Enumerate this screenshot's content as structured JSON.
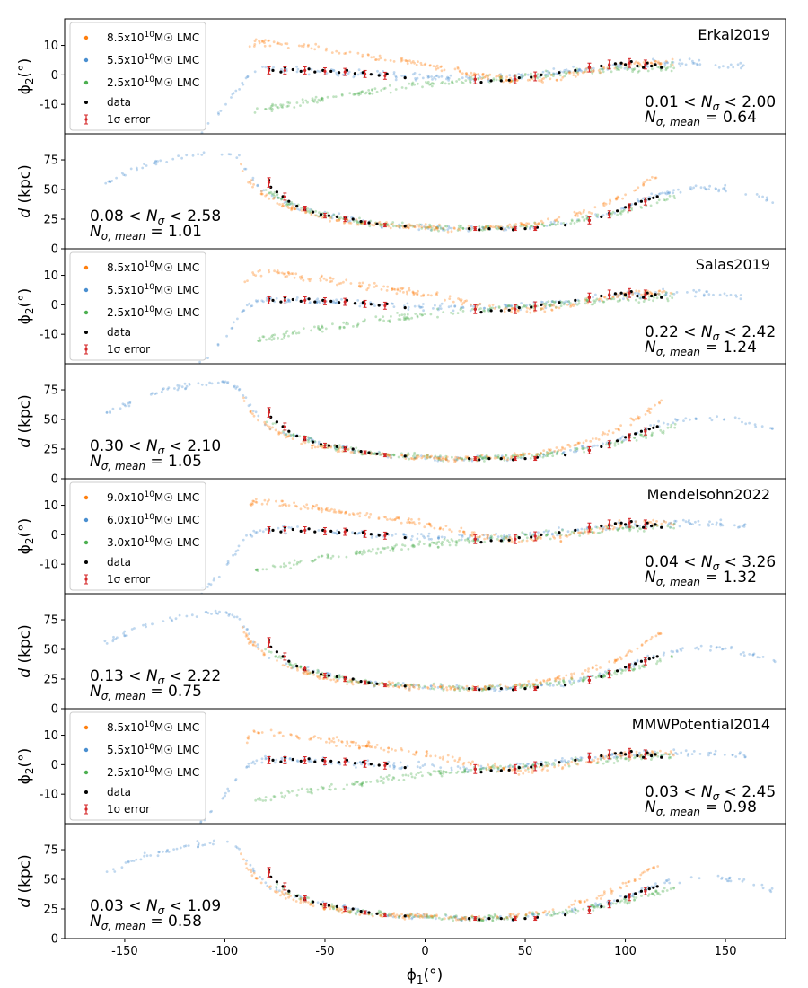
{
  "figure": {
    "xlabel_prefix": "ϕ",
    "xlabel_sub": "1",
    "xlabel_suffix": "(°)",
    "xlim": [
      -180,
      180
    ],
    "xticks": [
      -150,
      -100,
      -50,
      0,
      50,
      100,
      150
    ],
    "legend_labels": {
      "data": "data",
      "error": "1σ error"
    },
    "ylabel_phi": {
      "prefix": "ϕ",
      "sub": "2",
      "suffix": "(°)"
    },
    "ylabel_d": "d (kpc)",
    "colors": {
      "heavy": "#ff7f0e",
      "medium": "#4a8fd0",
      "light": "#4caf50",
      "data": "#000000",
      "error": "#d62728"
    }
  },
  "chart_data": [
    {
      "model": "Erkal2019",
      "legend": [
        "8.5x10^10 M☉ LMC",
        "5.5x10^10 M☉ LMC",
        "2.5x10^10 M☉ LMC"
      ],
      "phi_panel": {
        "type": "scatter",
        "ylim": [
          -20,
          19
        ],
        "yticks": [
          -10,
          0,
          10
        ],
        "stat1_lhs": "0.01",
        "stat1_rhs": "2.00",
        "stat2": "0.64"
      },
      "d_panel": {
        "type": "scatter",
        "ylim": [
          0,
          97
        ],
        "yticks": [
          0,
          25,
          50,
          75
        ],
        "stat1_lhs": "0.08",
        "stat1_rhs": "2.58",
        "stat2": "1.01"
      }
    },
    {
      "model": "Salas2019",
      "legend": [
        "8.5x10^10 M☉ LMC",
        "5.5x10^10 M☉ LMC",
        "2.5x10^10 M☉ LMC"
      ],
      "phi_panel": {
        "type": "scatter",
        "ylim": [
          -20,
          19
        ],
        "yticks": [
          -10,
          0,
          10
        ],
        "stat1_lhs": "0.22",
        "stat1_rhs": "2.42",
        "stat2": "1.24"
      },
      "d_panel": {
        "type": "scatter",
        "ylim": [
          0,
          97
        ],
        "yticks": [
          0,
          25,
          50,
          75
        ],
        "stat1_lhs": "0.30",
        "stat1_rhs": "2.10",
        "stat2": "1.05"
      }
    },
    {
      "model": "Mendelsohn2022",
      "legend": [
        "9.0x10^10 M☉ LMC",
        "6.0x10^10 M☉ LMC",
        "3.0x10^10 M☉ LMC"
      ],
      "phi_panel": {
        "type": "scatter",
        "ylim": [
          -20,
          19
        ],
        "yticks": [
          -10,
          0,
          10
        ],
        "stat1_lhs": "0.04",
        "stat1_rhs": "3.26",
        "stat2": "1.32"
      },
      "d_panel": {
        "type": "scatter",
        "ylim": [
          0,
          97
        ],
        "yticks": [
          0,
          25,
          50,
          75
        ],
        "stat1_lhs": "0.13",
        "stat1_rhs": "2.22",
        "stat2": "0.75"
      }
    },
    {
      "model": "MMWPotential2014",
      "legend": [
        "8.5x10^10 M☉ LMC",
        "5.5x10^10 M☉ LMC",
        "2.5x10^10 M☉ LMC"
      ],
      "phi_panel": {
        "type": "scatter",
        "ylim": [
          -20,
          19
        ],
        "yticks": [
          -10,
          0,
          10
        ],
        "stat1_lhs": "0.03",
        "stat1_rhs": "2.45",
        "stat2": "0.98"
      },
      "d_panel": {
        "type": "scatter",
        "ylim": [
          0,
          97
        ],
        "yticks": [
          0,
          25,
          50,
          75
        ],
        "stat1_lhs": "0.03",
        "stat1_rhs": "1.09",
        "stat2": "0.58"
      }
    }
  ],
  "observed": {
    "phi2_points": [
      [
        -78,
        2
      ],
      [
        -76,
        1.5
      ],
      [
        -72,
        1
      ],
      [
        -70,
        2.5
      ],
      [
        -66,
        1.8
      ],
      [
        -62,
        1.2
      ],
      [
        -58,
        2
      ],
      [
        -55,
        1
      ],
      [
        -51,
        1.5
      ],
      [
        -47,
        1.2
      ],
      [
        -43,
        0.8
      ],
      [
        -39,
        1.5
      ],
      [
        -35,
        0.5
      ],
      [
        -31,
        0.8
      ],
      [
        -27,
        0.2
      ],
      [
        -23,
        -0.2
      ],
      [
        -19,
        0.3
      ],
      [
        -10,
        -1
      ],
      [
        25,
        -1.5
      ],
      [
        28,
        -2.5
      ],
      [
        33,
        -2
      ],
      [
        38,
        -2
      ],
      [
        42,
        -1.8
      ],
      [
        47,
        -1
      ],
      [
        53,
        -0.8
      ],
      [
        58,
        0
      ],
      [
        67,
        0.8
      ],
      [
        75,
        1.5
      ],
      [
        82,
        2.5
      ],
      [
        88,
        3
      ],
      [
        92,
        3.2
      ],
      [
        95,
        3.8
      ],
      [
        98,
        4
      ],
      [
        100,
        3.5
      ],
      [
        103,
        4.5
      ],
      [
        106,
        3
      ],
      [
        109,
        2.5
      ],
      [
        111,
        4
      ],
      [
        113,
        3
      ],
      [
        115,
        3.5
      ],
      [
        118,
        2.5
      ]
    ],
    "phi2_errors": [
      [
        -78,
        1.5,
        1.2
      ],
      [
        -70,
        1.5,
        1.2
      ],
      [
        -60,
        1.5,
        1.2
      ],
      [
        -50,
        1.2,
        1.2
      ],
      [
        -40,
        1,
        1.2
      ],
      [
        -30,
        0.3,
        1.2
      ],
      [
        -20,
        -0.3,
        1.2
      ],
      [
        25,
        -1.5,
        1.5
      ],
      [
        45,
        -1.5,
        1.5
      ],
      [
        55,
        -0.5,
        1.5
      ],
      [
        82,
        2.5,
        1.5
      ],
      [
        92,
        3.5,
        1.5
      ],
      [
        102,
        4,
        1.5
      ],
      [
        110,
        3.5,
        1.5
      ]
    ],
    "d_points": [
      [
        -78,
        58
      ],
      [
        -77,
        52
      ],
      [
        -74,
        48
      ],
      [
        -71,
        44
      ],
      [
        -68,
        40
      ],
      [
        -64,
        36
      ],
      [
        -60,
        33
      ],
      [
        -56,
        31
      ],
      [
        -52,
        29
      ],
      [
        -48,
        28
      ],
      [
        -44,
        27
      ],
      [
        -40,
        26
      ],
      [
        -36,
        25
      ],
      [
        -32,
        23
      ],
      [
        -28,
        22
      ],
      [
        -24,
        21
      ],
      [
        -20,
        20
      ],
      [
        -10,
        19
      ],
      [
        22,
        17
      ],
      [
        27,
        16
      ],
      [
        32,
        17
      ],
      [
        38,
        17
      ],
      [
        44,
        16
      ],
      [
        50,
        17
      ],
      [
        56,
        18
      ],
      [
        70,
        20
      ],
      [
        82,
        24
      ],
      [
        88,
        27
      ],
      [
        92,
        30
      ],
      [
        96,
        32
      ],
      [
        100,
        35
      ],
      [
        102,
        37
      ],
      [
        105,
        38
      ],
      [
        108,
        40
      ],
      [
        110,
        41
      ],
      [
        112,
        42
      ],
      [
        114,
        43
      ],
      [
        116,
        44
      ]
    ],
    "d_errors": [
      [
        -78,
        56,
        4
      ],
      [
        -70,
        44,
        3
      ],
      [
        -60,
        34,
        2
      ],
      [
        -50,
        28,
        2
      ],
      [
        -40,
        25,
        2
      ],
      [
        -30,
        22,
        1.5
      ],
      [
        -20,
        20,
        1.5
      ],
      [
        25,
        17,
        1.5
      ],
      [
        45,
        17,
        1.5
      ],
      [
        55,
        17,
        1.5
      ],
      [
        82,
        24,
        3
      ],
      [
        92,
        29,
        3
      ],
      [
        102,
        35,
        3
      ],
      [
        110,
        40,
        3
      ]
    ]
  }
}
